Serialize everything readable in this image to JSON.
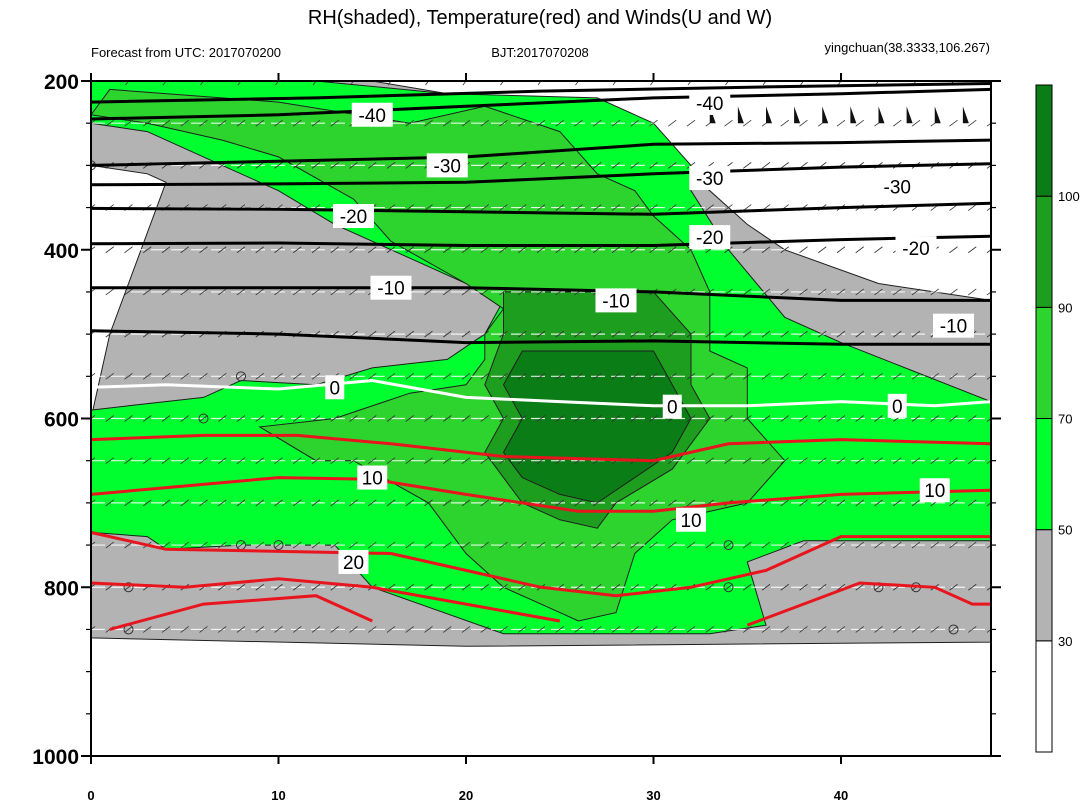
{
  "figure": {
    "title": "RH(shaded), Temperature(red) and Winds(U and W)",
    "left_string": "Forecast from UTC: 2017070200",
    "center_string": "BJT:2017070208",
    "right_string": "yingchuan(38.3333,106.267)"
  },
  "chart_data": {
    "type": "heatmap",
    "description_layers": [
      "RH filled contours",
      "temperature contour lines",
      "wind barbs"
    ],
    "x_ticks": [
      0,
      10,
      20,
      30,
      40
    ],
    "xlim": [
      0,
      48
    ],
    "y_ticks": [
      200,
      400,
      600,
      800,
      1000
    ],
    "ylim": [
      200,
      1000
    ],
    "y_reversed": true,
    "pressure_levels": [
      200,
      250,
      300,
      350,
      400,
      450,
      500,
      550,
      600,
      650,
      700,
      750,
      800,
      850
    ],
    "colorbar": {
      "ticks": [
        30,
        50,
        70,
        90,
        100
      ],
      "levels": [
        {
          "range": "<30",
          "color": "#ffffff"
        },
        {
          "range": "30-50",
          "color": "#b3b3b3"
        },
        {
          "range": "50-70",
          "color": "#00ff2e"
        },
        {
          "range": "70-90",
          "color": "#2ed42e"
        },
        {
          "range": "90-100",
          "color": "#1e9e1e"
        },
        {
          "range": ">100",
          "color": "#0b7d16"
        }
      ]
    },
    "rh_regions": [
      {
        "level": "30-50",
        "points": [
          [
            0,
            200
          ],
          [
            15,
            200
          ],
          [
            23,
            230
          ],
          [
            28,
            250
          ],
          [
            31,
            300
          ],
          [
            33,
            330
          ],
          [
            35,
            370
          ],
          [
            37,
            400
          ],
          [
            42,
            440
          ],
          [
            48,
            460
          ],
          [
            48,
            850
          ],
          [
            48,
            865
          ],
          [
            20,
            870
          ],
          [
            0,
            860
          ],
          [
            0,
            600
          ],
          [
            1,
            500
          ],
          [
            4,
            320
          ],
          [
            3,
            310
          ],
          [
            0,
            300
          ]
        ]
      },
      {
        "level": "50-70",
        "points": [
          [
            0,
            200
          ],
          [
            12,
            200
          ],
          [
            19,
            215
          ],
          [
            27,
            220
          ],
          [
            30,
            250
          ],
          [
            32,
            300
          ],
          [
            32,
            330
          ],
          [
            34,
            400
          ],
          [
            37,
            480
          ],
          [
            40,
            510
          ],
          [
            44,
            545
          ],
          [
            48,
            580
          ],
          [
            48,
            745
          ],
          [
            38,
            745
          ],
          [
            35,
            770
          ],
          [
            36,
            845
          ],
          [
            33,
            855
          ],
          [
            22,
            855
          ],
          [
            15,
            800
          ],
          [
            13,
            750
          ],
          [
            8,
            750
          ],
          [
            4,
            755
          ],
          [
            3,
            740
          ],
          [
            0,
            735
          ],
          [
            0,
            590
          ],
          [
            2,
            585
          ],
          [
            6,
            575
          ],
          [
            8,
            555
          ],
          [
            12,
            560
          ],
          [
            15,
            540
          ],
          [
            19,
            530
          ],
          [
            21,
            500
          ],
          [
            22,
            460
          ],
          [
            18,
            420
          ],
          [
            13,
            370
          ],
          [
            10,
            330
          ],
          [
            7,
            300
          ],
          [
            3,
            260
          ],
          [
            0,
            250
          ]
        ]
      },
      {
        "level": "70-90",
        "points": [
          [
            1,
            210
          ],
          [
            10,
            225
          ],
          [
            17,
            250
          ],
          [
            21,
            230
          ],
          [
            25,
            260
          ],
          [
            27,
            310
          ],
          [
            29,
            330
          ],
          [
            30,
            360
          ],
          [
            31,
            380
          ],
          [
            32,
            400
          ],
          [
            33,
            450
          ],
          [
            33,
            520
          ],
          [
            35,
            540
          ],
          [
            35,
            600
          ],
          [
            37,
            650
          ],
          [
            35,
            700
          ],
          [
            31,
            720
          ],
          [
            29,
            760
          ],
          [
            28,
            830
          ],
          [
            26,
            840
          ],
          [
            24,
            820
          ],
          [
            22,
            800
          ],
          [
            20,
            760
          ],
          [
            18,
            700
          ],
          [
            14,
            650
          ],
          [
            12,
            650
          ],
          [
            9,
            610
          ],
          [
            13,
            600
          ],
          [
            17,
            570
          ],
          [
            20,
            560
          ],
          [
            21,
            530
          ],
          [
            21,
            500
          ],
          [
            22,
            470
          ],
          [
            20,
            440
          ],
          [
            16,
            390
          ],
          [
            14,
            340
          ],
          [
            10,
            290
          ],
          [
            7,
            270
          ],
          [
            3,
            250
          ],
          [
            0,
            240
          ]
        ]
      },
      {
        "level": "90-100",
        "points": [
          [
            22,
            450
          ],
          [
            30,
            450
          ],
          [
            32,
            500
          ],
          [
            32,
            560
          ],
          [
            33,
            600
          ],
          [
            31,
            660
          ],
          [
            28,
            700
          ],
          [
            27,
            730
          ],
          [
            25,
            720
          ],
          [
            23,
            700
          ],
          [
            22,
            670
          ],
          [
            21,
            640
          ],
          [
            22,
            600
          ],
          [
            21,
            560
          ],
          [
            22,
            500
          ]
        ]
      },
      {
        "level": ">100",
        "points": [
          [
            23,
            520
          ],
          [
            30,
            520
          ],
          [
            31,
            560
          ],
          [
            32,
            600
          ],
          [
            31,
            640
          ],
          [
            29,
            670
          ],
          [
            27,
            700
          ],
          [
            25,
            690
          ],
          [
            23,
            670
          ],
          [
            22,
            640
          ],
          [
            23,
            600
          ],
          [
            22,
            560
          ]
        ]
      }
    ],
    "temperature_lines": [
      {
        "value": -40,
        "points": [
          [
            0,
            245
          ],
          [
            10,
            240
          ],
          [
            20,
            230
          ],
          [
            30,
            220
          ],
          [
            40,
            215
          ],
          [
            48,
            210
          ]
        ]
      },
      {
        "value": -40,
        "points": [
          [
            0,
            225
          ],
          [
            12,
            220
          ],
          [
            24,
            212
          ],
          [
            36,
            207
          ],
          [
            48,
            203
          ]
        ]
      },
      {
        "value": -30,
        "points": [
          [
            0,
            300
          ],
          [
            10,
            295
          ],
          [
            20,
            290
          ],
          [
            30,
            275
          ],
          [
            40,
            273
          ],
          [
            48,
            270
          ]
        ]
      },
      {
        "value": -30,
        "points": [
          [
            0,
            323
          ],
          [
            10,
            322
          ],
          [
            20,
            320
          ],
          [
            30,
            310
          ],
          [
            40,
            302
          ],
          [
            48,
            298
          ]
        ]
      },
      {
        "value": -20,
        "points": [
          [
            0,
            351
          ],
          [
            10,
            352
          ],
          [
            20,
            355
          ],
          [
            30,
            358
          ],
          [
            40,
            350
          ],
          [
            48,
            345
          ]
        ]
      },
      {
        "value": -20,
        "points": [
          [
            0,
            393
          ],
          [
            10,
            392
          ],
          [
            20,
            395
          ],
          [
            30,
            395
          ],
          [
            40,
            388
          ],
          [
            48,
            384
          ]
        ]
      },
      {
        "value": -10,
        "points": [
          [
            0,
            445
          ],
          [
            10,
            445
          ],
          [
            20,
            445
          ],
          [
            30,
            450
          ],
          [
            40,
            460
          ],
          [
            48,
            460
          ]
        ]
      },
      {
        "value": -10,
        "points": [
          [
            0,
            496
          ],
          [
            10,
            500
          ],
          [
            20,
            510
          ],
          [
            30,
            508
          ],
          [
            40,
            512
          ],
          [
            48,
            512
          ]
        ]
      }
    ],
    "zero_line": {
      "value": 0,
      "points": [
        [
          0,
          563
        ],
        [
          4,
          560
        ],
        [
          10,
          565
        ],
        [
          15,
          555
        ],
        [
          20,
          575
        ],
        [
          25,
          580
        ],
        [
          30,
          585
        ],
        [
          35,
          585
        ],
        [
          40,
          580
        ],
        [
          45,
          585
        ],
        [
          48,
          580
        ]
      ]
    },
    "red_temperature_lines": [
      {
        "value": 10,
        "points": [
          [
            0,
            625
          ],
          [
            6,
            620
          ],
          [
            11,
            620
          ],
          [
            16,
            630
          ],
          [
            22,
            645
          ],
          [
            30,
            650
          ],
          [
            34,
            630
          ],
          [
            40,
            625
          ],
          [
            48,
            630
          ]
        ]
      },
      {
        "value": 10,
        "points": [
          [
            0,
            690
          ],
          [
            5,
            680
          ],
          [
            10,
            670
          ],
          [
            15,
            672
          ],
          [
            20,
            690
          ],
          [
            26,
            710
          ],
          [
            30,
            710
          ],
          [
            34,
            700
          ],
          [
            40,
            690
          ],
          [
            48,
            685
          ]
        ]
      },
      {
        "value": 20,
        "points": [
          [
            0,
            735
          ],
          [
            4,
            755
          ],
          [
            9,
            757
          ],
          [
            16,
            760
          ],
          [
            20,
            780
          ],
          [
            24,
            800
          ],
          [
            28,
            810
          ],
          [
            32,
            800
          ],
          [
            36,
            780
          ],
          [
            40,
            740
          ],
          [
            48,
            740
          ]
        ]
      },
      {
        "value": 20,
        "points": [
          [
            0,
            795
          ],
          [
            5,
            800
          ],
          [
            10,
            790
          ],
          [
            15,
            800
          ],
          [
            20,
            820
          ],
          [
            25,
            840
          ]
        ]
      },
      {
        "value": 20,
        "points": [
          [
            1,
            850
          ],
          [
            6,
            820
          ],
          [
            12,
            810
          ],
          [
            15,
            840
          ]
        ]
      },
      {
        "value": 20,
        "points": [
          [
            35,
            845
          ],
          [
            38,
            820
          ],
          [
            41,
            795
          ],
          [
            45,
            800
          ],
          [
            47,
            820
          ],
          [
            48,
            820
          ]
        ]
      }
    ],
    "contour_labels": [
      {
        "text": "-40",
        "x": 15,
        "y": 240
      },
      {
        "text": "-40",
        "x": 33,
        "y": 226
      },
      {
        "text": "-30",
        "x": 19,
        "y": 300
      },
      {
        "text": "-30",
        "x": 33,
        "y": 315
      },
      {
        "text": "-30",
        "x": 43,
        "y": 325
      },
      {
        "text": "-20",
        "x": 14,
        "y": 360
      },
      {
        "text": "-20",
        "x": 33,
        "y": 385
      },
      {
        "text": "-20",
        "x": 44,
        "y": 398
      },
      {
        "text": "-10",
        "x": 16,
        "y": 445
      },
      {
        "text": "-10",
        "x": 28,
        "y": 460
      },
      {
        "text": "-10",
        "x": 46,
        "y": 490
      },
      {
        "text": "0",
        "x": 13,
        "y": 563
      },
      {
        "text": "0",
        "x": 31,
        "y": 586
      },
      {
        "text": "0",
        "x": 43,
        "y": 585
      },
      {
        "text": "10",
        "x": 15,
        "y": 670
      },
      {
        "text": "10",
        "x": 32,
        "y": 720
      },
      {
        "text": "10",
        "x": 45,
        "y": 685
      },
      {
        "text": "20",
        "x": 14,
        "y": 770
      }
    ]
  }
}
